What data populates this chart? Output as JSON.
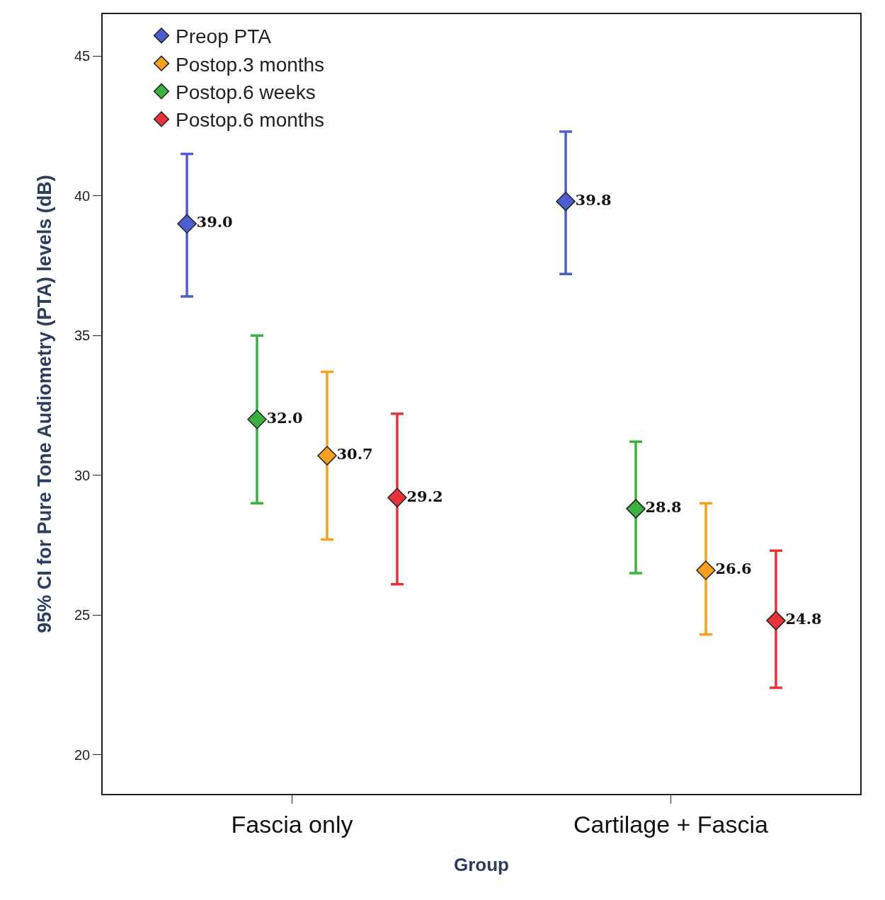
{
  "chart_data": {
    "type": "scatter",
    "xlabel": "Group",
    "ylabel": "95% CI for Pure Tone Audiometry (PTA) levels (dB)",
    "categories": [
      "Fascia only",
      "Cartilage + Fascia"
    ],
    "series": [
      {
        "name": "Preop PTA",
        "color": "#4b5fd0",
        "values": [
          39.0,
          39.8
        ],
        "value_labels": [
          "39.0",
          "39.8"
        ],
        "errors": [
          [
            36.4,
            41.5
          ],
          [
            37.2,
            42.3
          ]
        ]
      },
      {
        "name": "Postop.6 weeks",
        "color": "#3cb043",
        "values": [
          32.0,
          28.8
        ],
        "value_labels": [
          "32.0",
          "28.8"
        ],
        "errors": [
          [
            29.0,
            35.0
          ],
          [
            26.5,
            31.2
          ]
        ]
      },
      {
        "name": "Postop.3 months",
        "color": "#f5a020",
        "values": [
          30.7,
          26.6
        ],
        "value_labels": [
          "30.7",
          "26.6"
        ],
        "errors": [
          [
            27.7,
            33.7
          ],
          [
            24.3,
            29.0
          ]
        ]
      },
      {
        "name": "Postop.6 months",
        "color": "#e8333a",
        "values": [
          29.2,
          24.8
        ],
        "value_labels": [
          "29.2",
          "24.8"
        ],
        "errors": [
          [
            26.1,
            32.2
          ],
          [
            22.4,
            27.3
          ]
        ]
      }
    ],
    "ylim": [
      18.6,
      46.5
    ],
    "yticks": [
      20,
      25,
      30,
      35,
      40,
      45
    ],
    "marker": "diamond",
    "legend": "top"
  }
}
